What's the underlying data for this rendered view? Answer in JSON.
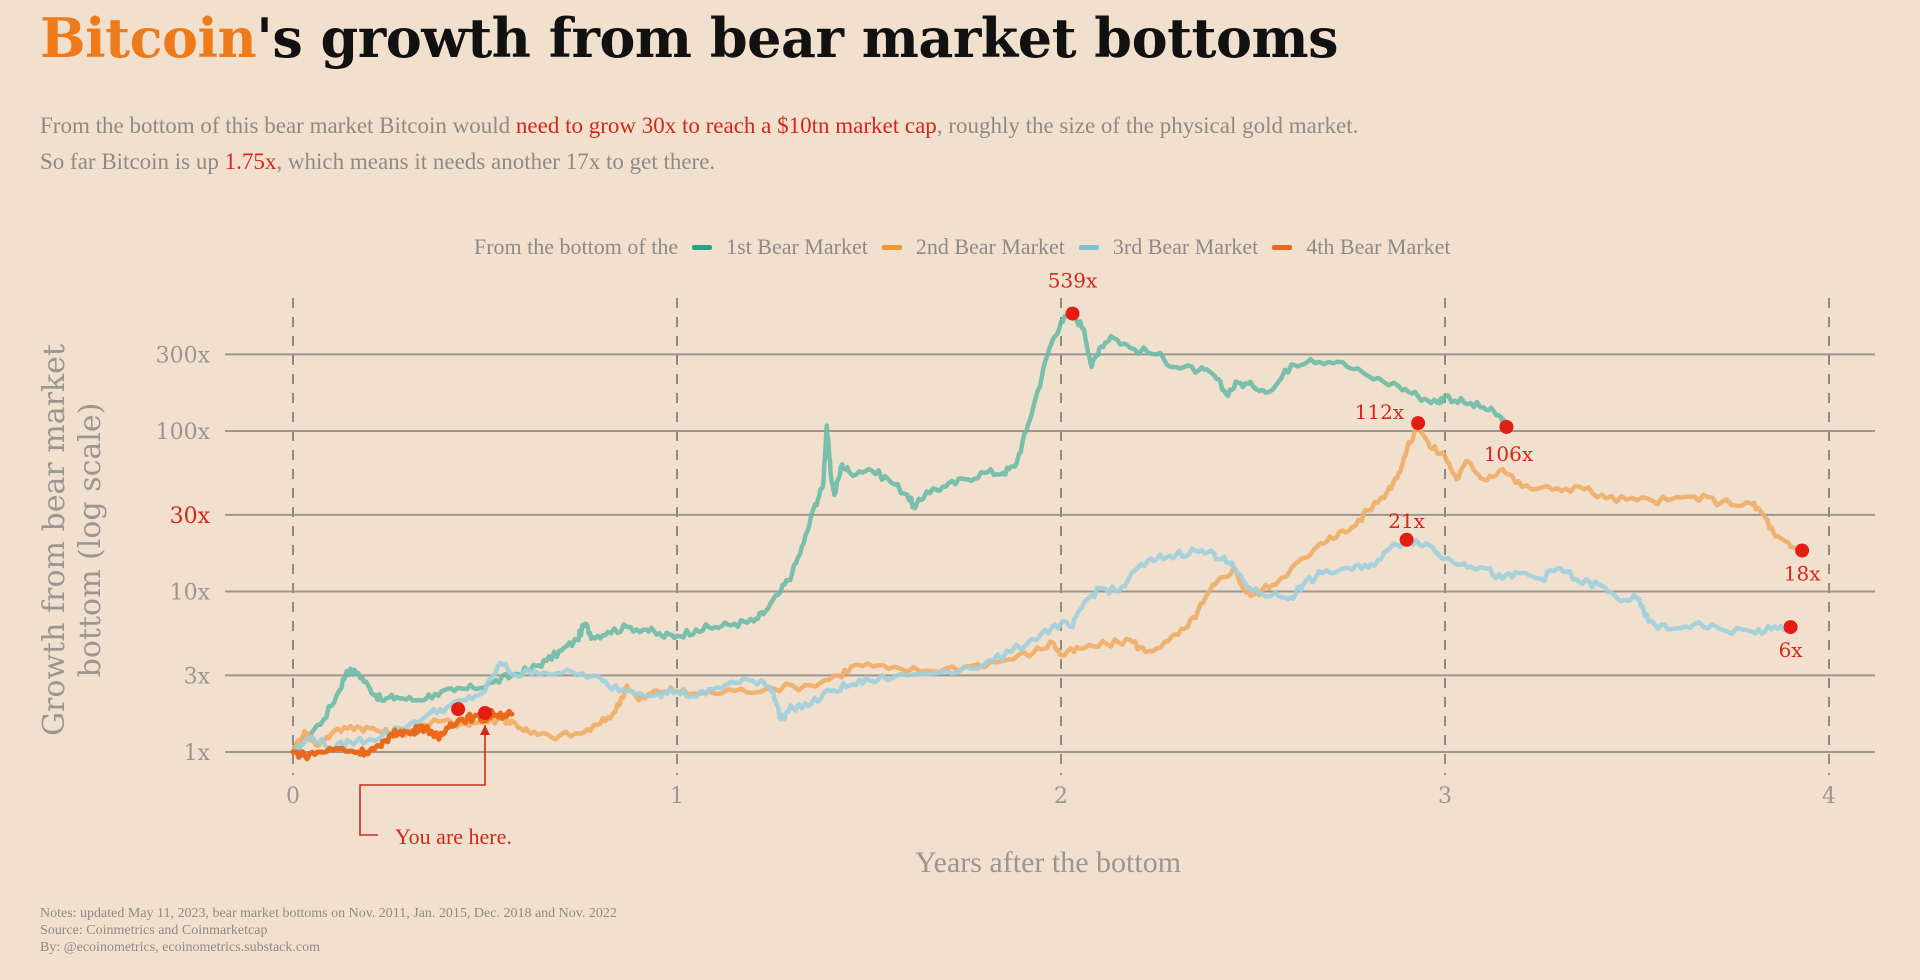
{
  "header": {
    "title_accent": "Bitcoin",
    "title_rest": "'s growth from bear market bottoms",
    "subtitle_line1_a": "From the bottom of this bear market Bitcoin would ",
    "subtitle_line1_hl": "need to grow 30x to reach a $10tn market cap",
    "subtitle_line1_b": ", roughly the size of the physical gold market.",
    "subtitle_line2_a": "So far Bitcoin is up ",
    "subtitle_line2_hl": "1.75x",
    "subtitle_line2_b": ", which means it needs another 17x to get there."
  },
  "legend": {
    "prefix": "From the bottom of the",
    "items": [
      {
        "label": "1st Bear Market",
        "color": "#2f9e86"
      },
      {
        "label": "2nd Bear Market",
        "color": "#ee9a33"
      },
      {
        "label": "3rd Bear Market",
        "color": "#7fc1d3"
      },
      {
        "label": "4th Bear Market",
        "color": "#ea6a1b"
      }
    ]
  },
  "notes": {
    "line1": "Notes: updated May 11, 2023, bear market bottoms on Nov. 2011, Jan. 2015, Dec. 2018 and Nov. 2022",
    "line2": "Source: Coinmetrics and Coinmarketcap",
    "line3": "By: @ecoinometrics, ecoinometrics.substack.com"
  },
  "chart_data": {
    "type": "line",
    "title": "Bitcoin's growth from bear market bottoms",
    "xlabel": "Years after the bottom",
    "ylabel_line1": "Growth from bear market",
    "ylabel_line2": "bottom (log scale)",
    "yscale": "log",
    "xlim": [
      0,
      4.1
    ],
    "ylim": [
      0.8,
      700
    ],
    "xticks": [
      0,
      1,
      2,
      3,
      4
    ],
    "xtick_labels": [
      "0",
      "1",
      "2",
      "3",
      "4"
    ],
    "yticks": [
      1,
      3,
      10,
      30,
      100,
      300
    ],
    "ytick_labels": [
      "1x",
      "3x",
      "10x",
      "30x",
      "100x",
      "300x"
    ],
    "highlight_ytick": "30x",
    "grid": "horizontal solid, vertical dashed at year ticks",
    "legend_position": "top-center",
    "series": [
      {
        "name": "1st Bear Market",
        "color": "#6cbba6",
        "points": [
          [
            0,
            1
          ],
          [
            0.03,
            1.2
          ],
          [
            0.08,
            1.6
          ],
          [
            0.12,
            2.4
          ],
          [
            0.14,
            3.2
          ],
          [
            0.17,
            3.1
          ],
          [
            0.2,
            2.5
          ],
          [
            0.23,
            2.1
          ],
          [
            0.27,
            2.2
          ],
          [
            0.32,
            2.1
          ],
          [
            0.37,
            2.3
          ],
          [
            0.42,
            2.4
          ],
          [
            0.47,
            2.5
          ],
          [
            0.52,
            2.7
          ],
          [
            0.57,
            3.0
          ],
          [
            0.62,
            3.3
          ],
          [
            0.66,
            3.7
          ],
          [
            0.7,
            4.3
          ],
          [
            0.74,
            5.0
          ],
          [
            0.76,
            6.3
          ],
          [
            0.78,
            5.2
          ],
          [
            0.82,
            5.6
          ],
          [
            0.87,
            6.0
          ],
          [
            0.92,
            5.8
          ],
          [
            0.96,
            5.3
          ],
          [
            1.0,
            5.3
          ],
          [
            1.05,
            5.8
          ],
          [
            1.1,
            6.0
          ],
          [
            1.15,
            6.3
          ],
          [
            1.2,
            6.5
          ],
          [
            1.23,
            7.5
          ],
          [
            1.27,
            10
          ],
          [
            1.3,
            13
          ],
          [
            1.33,
            20
          ],
          [
            1.36,
            35
          ],
          [
            1.38,
            45
          ],
          [
            1.39,
            108
          ],
          [
            1.4,
            55
          ],
          [
            1.41,
            40
          ],
          [
            1.43,
            62
          ],
          [
            1.45,
            55
          ],
          [
            1.5,
            58
          ],
          [
            1.55,
            50
          ],
          [
            1.6,
            40
          ],
          [
            1.62,
            33
          ],
          [
            1.65,
            42
          ],
          [
            1.7,
            45
          ],
          [
            1.75,
            50
          ],
          [
            1.8,
            55
          ],
          [
            1.85,
            55
          ],
          [
            1.88,
            60
          ],
          [
            1.91,
            100
          ],
          [
            1.94,
            180
          ],
          [
            1.97,
            330
          ],
          [
            2.0,
            480
          ],
          [
            2.03,
            539
          ],
          [
            2.06,
            430
          ],
          [
            2.08,
            250
          ],
          [
            2.1,
            330
          ],
          [
            2.13,
            390
          ],
          [
            2.18,
            330
          ],
          [
            2.25,
            300
          ],
          [
            2.3,
            250
          ],
          [
            2.36,
            240
          ],
          [
            2.4,
            220
          ],
          [
            2.43,
            170
          ],
          [
            2.46,
            200
          ],
          [
            2.5,
            190
          ],
          [
            2.55,
            180
          ],
          [
            2.6,
            260
          ],
          [
            2.65,
            280
          ],
          [
            2.72,
            270
          ],
          [
            2.8,
            220
          ],
          [
            2.88,
            190
          ],
          [
            2.93,
            165
          ],
          [
            2.98,
            150
          ],
          [
            3.0,
            165
          ],
          [
            3.05,
            150
          ],
          [
            3.1,
            140
          ],
          [
            3.14,
            125
          ],
          [
            3.16,
            106
          ]
        ]
      },
      {
        "name": "2nd Bear Market",
        "color": "#f0ad66",
        "points": [
          [
            0,
            1
          ],
          [
            0.03,
            1.35
          ],
          [
            0.06,
            1.1
          ],
          [
            0.1,
            1.3
          ],
          [
            0.15,
            1.45
          ],
          [
            0.2,
            1.4
          ],
          [
            0.25,
            1.3
          ],
          [
            0.3,
            1.35
          ],
          [
            0.38,
            1.55
          ],
          [
            0.45,
            1.5
          ],
          [
            0.5,
            1.55
          ],
          [
            0.55,
            1.6
          ],
          [
            0.58,
            1.5
          ],
          [
            0.62,
            1.3
          ],
          [
            0.67,
            1.25
          ],
          [
            0.75,
            1.3
          ],
          [
            0.8,
            1.5
          ],
          [
            0.84,
            1.8
          ],
          [
            0.87,
            2.6
          ],
          [
            0.9,
            2.1
          ],
          [
            0.95,
            2.4
          ],
          [
            1.0,
            2.4
          ],
          [
            1.05,
            2.3
          ],
          [
            1.15,
            2.4
          ],
          [
            1.25,
            2.5
          ],
          [
            1.35,
            2.6
          ],
          [
            1.42,
            3.0
          ],
          [
            1.47,
            3.5
          ],
          [
            1.55,
            3.3
          ],
          [
            1.65,
            3.2
          ],
          [
            1.75,
            3.4
          ],
          [
            1.85,
            3.7
          ],
          [
            1.93,
            4.2
          ],
          [
            1.98,
            4.8
          ],
          [
            2.0,
            4.0
          ],
          [
            2.05,
            4.4
          ],
          [
            2.12,
            4.7
          ],
          [
            2.18,
            5.0
          ],
          [
            2.22,
            4.2
          ],
          [
            2.28,
            4.9
          ],
          [
            2.33,
            6.0
          ],
          [
            2.37,
            8.5
          ],
          [
            2.4,
            11
          ],
          [
            2.45,
            14
          ],
          [
            2.48,
            10
          ],
          [
            2.5,
            9.5
          ],
          [
            2.55,
            11
          ],
          [
            2.6,
            14
          ],
          [
            2.65,
            17
          ],
          [
            2.7,
            22
          ],
          [
            2.75,
            24
          ],
          [
            2.8,
            32
          ],
          [
            2.85,
            42
          ],
          [
            2.88,
            55
          ],
          [
            2.9,
            75
          ],
          [
            2.93,
            112
          ],
          [
            2.96,
            80
          ],
          [
            3.0,
            70
          ],
          [
            3.03,
            50
          ],
          [
            3.06,
            65
          ],
          [
            3.1,
            50
          ],
          [
            3.15,
            58
          ],
          [
            3.2,
            45
          ],
          [
            3.28,
            43
          ],
          [
            3.35,
            45
          ],
          [
            3.42,
            38
          ],
          [
            3.5,
            37
          ],
          [
            3.58,
            37
          ],
          [
            3.65,
            39
          ],
          [
            3.72,
            36
          ],
          [
            3.8,
            35
          ],
          [
            3.83,
            30
          ],
          [
            3.86,
            22
          ],
          [
            3.9,
            19
          ],
          [
            3.93,
            18
          ]
        ]
      },
      {
        "name": "3rd Bear Market",
        "color": "#9fcfdb",
        "points": [
          [
            0,
            1
          ],
          [
            0.05,
            1.25
          ],
          [
            0.1,
            1.05
          ],
          [
            0.15,
            1.15
          ],
          [
            0.2,
            1.2
          ],
          [
            0.28,
            1.4
          ],
          [
            0.35,
            1.7
          ],
          [
            0.4,
            1.9
          ],
          [
            0.45,
            2.1
          ],
          [
            0.5,
            2.4
          ],
          [
            0.54,
            3.6
          ],
          [
            0.58,
            3.0
          ],
          [
            0.63,
            3.2
          ],
          [
            0.7,
            3.1
          ],
          [
            0.78,
            3.0
          ],
          [
            0.82,
            2.6
          ],
          [
            0.88,
            2.4
          ],
          [
            0.95,
            2.3
          ],
          [
            1.0,
            2.4
          ],
          [
            1.05,
            2.2
          ],
          [
            1.1,
            2.5
          ],
          [
            1.15,
            2.7
          ],
          [
            1.22,
            2.8
          ],
          [
            1.25,
            2.4
          ],
          [
            1.27,
            1.6
          ],
          [
            1.3,
            1.9
          ],
          [
            1.35,
            2.0
          ],
          [
            1.4,
            2.4
          ],
          [
            1.45,
            2.6
          ],
          [
            1.5,
            2.8
          ],
          [
            1.6,
            3.0
          ],
          [
            1.7,
            3.2
          ],
          [
            1.8,
            3.5
          ],
          [
            1.87,
            4.2
          ],
          [
            1.95,
            5.5
          ],
          [
            2.0,
            6.3
          ],
          [
            2.03,
            6.0
          ],
          [
            2.06,
            8.5
          ],
          [
            2.1,
            10.5
          ],
          [
            2.15,
            10
          ],
          [
            2.2,
            14
          ],
          [
            2.25,
            16
          ],
          [
            2.3,
            17
          ],
          [
            2.35,
            18
          ],
          [
            2.4,
            17
          ],
          [
            2.42,
            16
          ],
          [
            2.45,
            14
          ],
          [
            2.5,
            10
          ],
          [
            2.55,
            9.5
          ],
          [
            2.6,
            9.2
          ],
          [
            2.63,
            11
          ],
          [
            2.68,
            13
          ],
          [
            2.75,
            14
          ],
          [
            2.8,
            14
          ],
          [
            2.85,
            18
          ],
          [
            2.9,
            21
          ],
          [
            2.95,
            20
          ],
          [
            3.0,
            16
          ],
          [
            3.05,
            15
          ],
          [
            3.1,
            14
          ],
          [
            3.15,
            12
          ],
          [
            3.2,
            13
          ],
          [
            3.25,
            12
          ],
          [
            3.3,
            14
          ],
          [
            3.35,
            11.5
          ],
          [
            3.4,
            11
          ],
          [
            3.45,
            9
          ],
          [
            3.5,
            9
          ],
          [
            3.53,
            6.5
          ],
          [
            3.58,
            5.8
          ],
          [
            3.65,
            6.3
          ],
          [
            3.72,
            5.8
          ],
          [
            3.8,
            5.6
          ],
          [
            3.85,
            5.8
          ],
          [
            3.9,
            6.0
          ]
        ]
      },
      {
        "name": "4th Bear Market",
        "color": "#ea6a1b",
        "points": [
          [
            0,
            1
          ],
          [
            0.03,
            0.95
          ],
          [
            0.07,
            1.0
          ],
          [
            0.12,
            1.05
          ],
          [
            0.17,
            1.0
          ],
          [
            0.2,
            1.02
          ],
          [
            0.23,
            1.08
          ],
          [
            0.25,
            1.25
          ],
          [
            0.28,
            1.35
          ],
          [
            0.31,
            1.3
          ],
          [
            0.33,
            1.45
          ],
          [
            0.36,
            1.35
          ],
          [
            0.38,
            1.2
          ],
          [
            0.41,
            1.5
          ],
          [
            0.44,
            1.6
          ],
          [
            0.47,
            1.65
          ],
          [
            0.5,
            1.6
          ],
          [
            0.52,
            1.75
          ],
          [
            0.55,
            1.7
          ],
          [
            0.57,
            1.72
          ]
        ]
      }
    ],
    "annotations": [
      {
        "label": "539x",
        "x": 2.03,
        "y": 539,
        "series": "1st Bear Market"
      },
      {
        "label": "106x",
        "x": 3.16,
        "y": 106,
        "series": "1st Bear Market"
      },
      {
        "label": "112x",
        "x": 2.93,
        "y": 112,
        "series": "2nd Bear Market"
      },
      {
        "label": "18x",
        "x": 3.93,
        "y": 18,
        "series": "2nd Bear Market"
      },
      {
        "label": "21x",
        "x": 2.9,
        "y": 21,
        "series": "3rd Bear Market"
      },
      {
        "label": "6x",
        "x": 3.9,
        "y": 6,
        "series": "3rd Bear Market"
      },
      {
        "label": "You are here.",
        "x": 0.5,
        "y": 1.75,
        "series": "4th Bear Market"
      }
    ],
    "extra_markers": [
      {
        "x": 0.43,
        "y": 1.85,
        "series": "4th Bear Market"
      }
    ]
  }
}
